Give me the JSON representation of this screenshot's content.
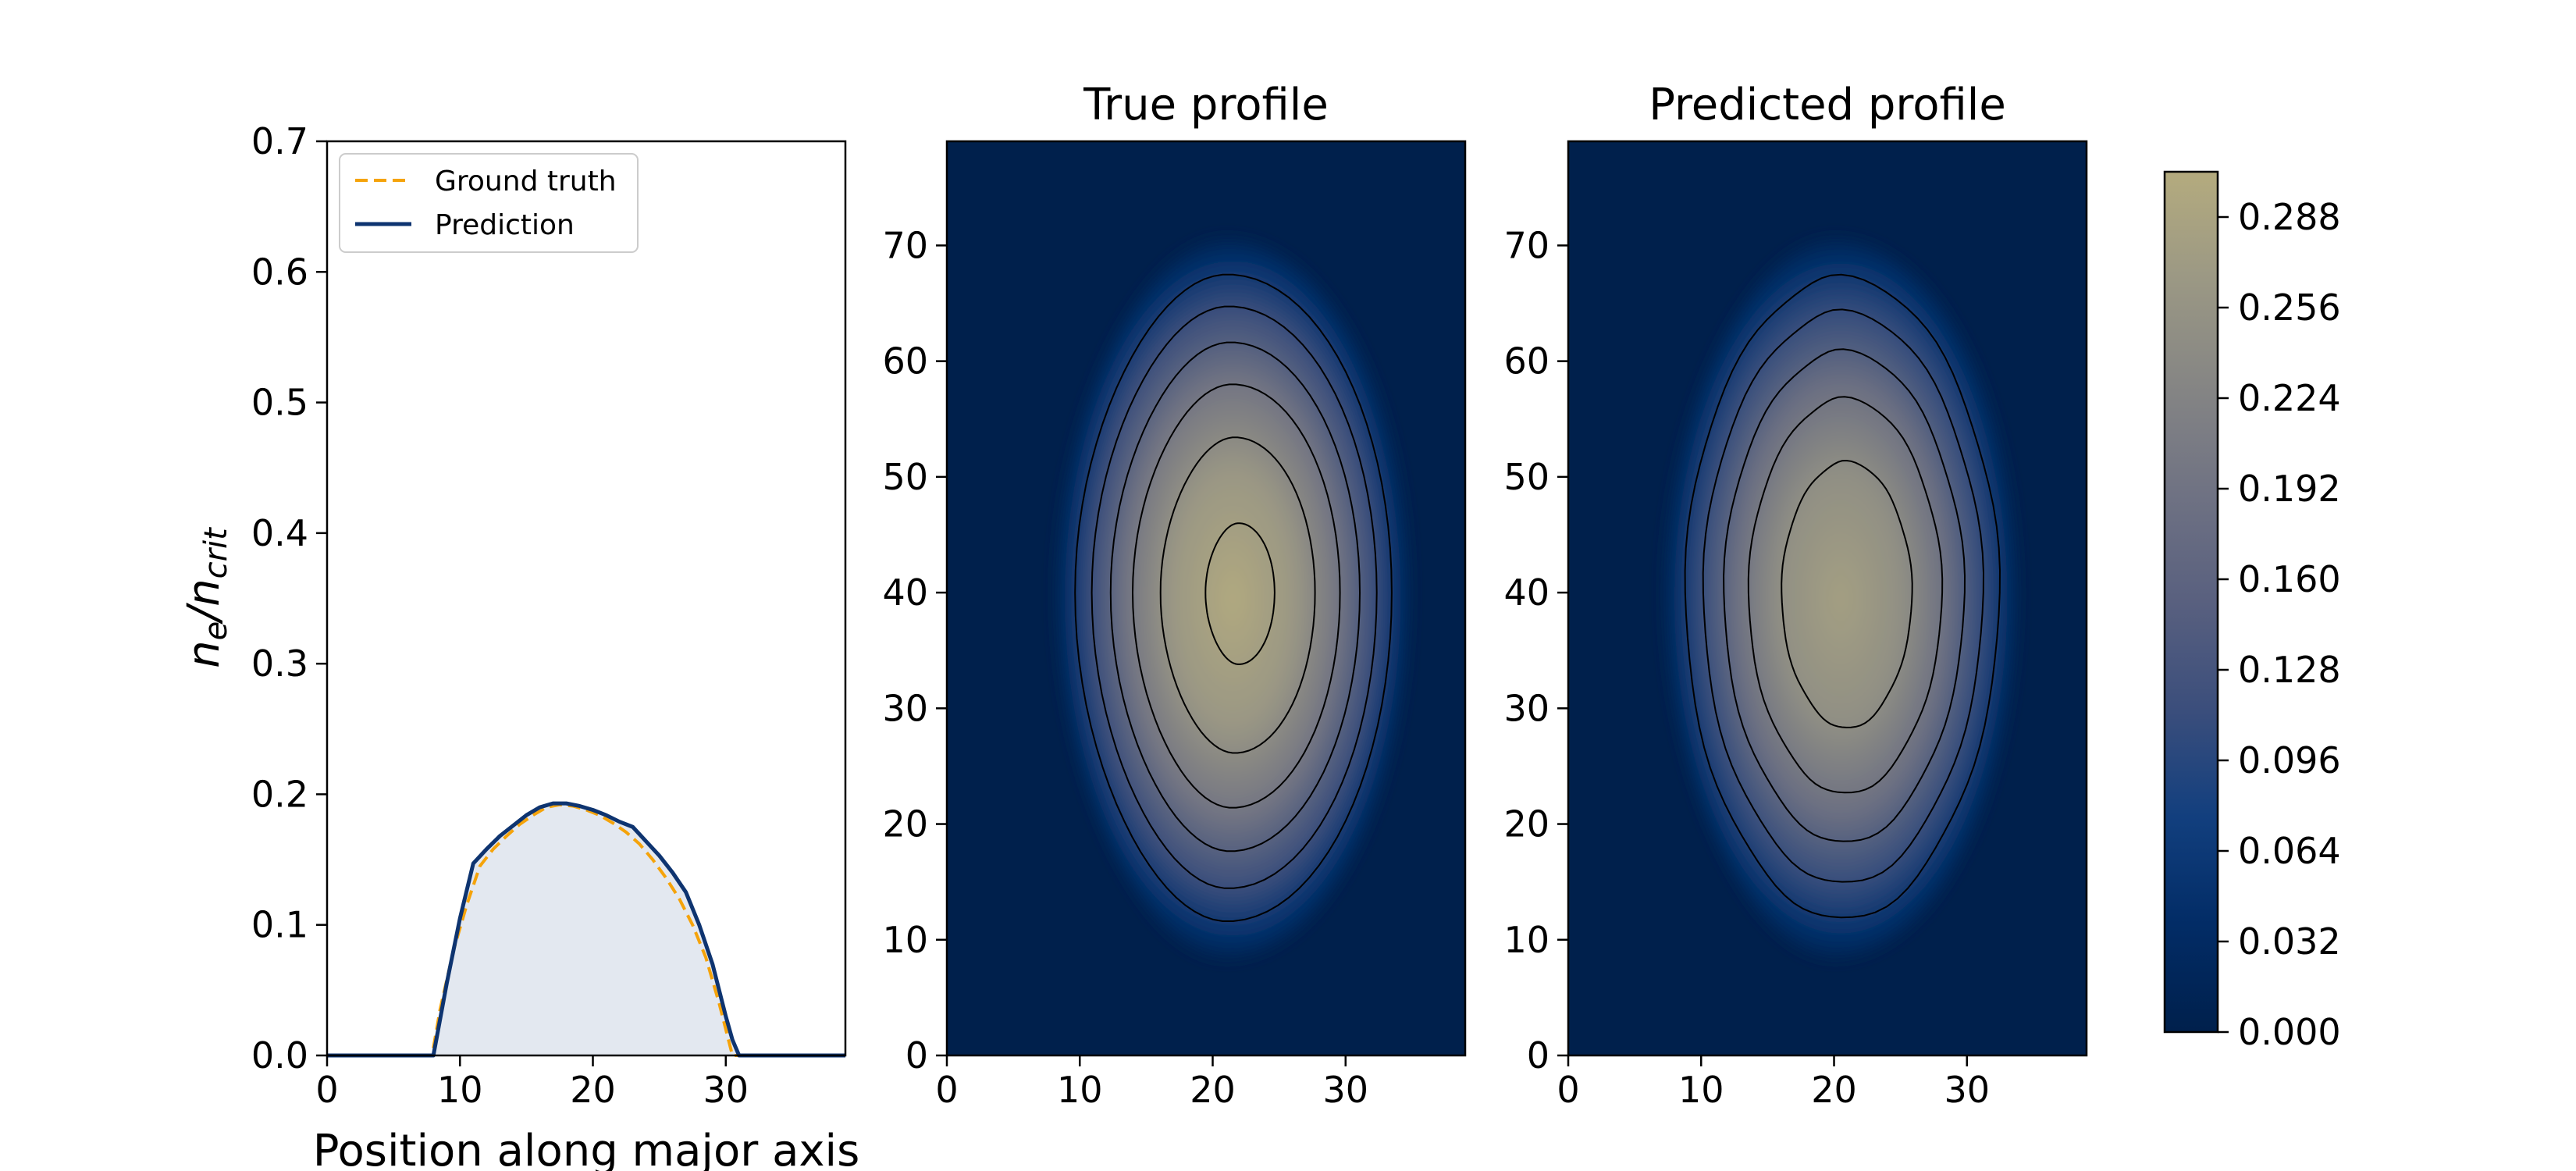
{
  "chart_data": [
    {
      "type": "line",
      "panel": "profile-line",
      "title": "",
      "xlabel": "Position along major axis",
      "ylabel_main": "n",
      "ylabel_sub1": "e",
      "ylabel_mid": "/n",
      "ylabel_sub2": "crit",
      "xlim": [
        0,
        39
      ],
      "ylim": [
        0,
        0.7
      ],
      "xticks": [
        0,
        10,
        20,
        30
      ],
      "yticks": [
        0.0,
        0.1,
        0.2,
        0.3,
        0.4,
        0.5,
        0.6,
        0.7
      ],
      "yticks_labels": [
        "0.0",
        "0.1",
        "0.2",
        "0.3",
        "0.4",
        "0.5",
        "0.6",
        "0.7"
      ],
      "legend_position": "top-left",
      "series": [
        {
          "name": "Ground truth",
          "style": "dashed",
          "color": "#f5a30a",
          "x": [
            0,
            7.9,
            8.5,
            9.5,
            10.5,
            11.5,
            12.5,
            13.5,
            14.5,
            15.5,
            16.5,
            17.5,
            18.5,
            19.5,
            20.5,
            21.5,
            22.5,
            23.5,
            24.5,
            25.5,
            26.5,
            27.5,
            28.5,
            29.5,
            30.0,
            30.5,
            31,
            39
          ],
          "y": [
            0,
            0,
            0.035,
            0.08,
            0.115,
            0.145,
            0.158,
            0.168,
            0.177,
            0.184,
            0.19,
            0.192,
            0.191,
            0.188,
            0.184,
            0.178,
            0.171,
            0.162,
            0.15,
            0.136,
            0.12,
            0.1,
            0.075,
            0.04,
            0.02,
            0.0,
            0,
            0
          ]
        },
        {
          "name": "Prediction",
          "style": "solid",
          "color": "#0e3470",
          "x": [
            0,
            8.0,
            9.0,
            10.0,
            11.0,
            12.0,
            13.0,
            14.0,
            15.0,
            16.0,
            17.0,
            18.0,
            19.0,
            20.0,
            21.0,
            22.0,
            23.0,
            24.0,
            25.0,
            26.0,
            27.0,
            28.0,
            29.0,
            30.0,
            30.5,
            31.0,
            39
          ],
          "y": [
            0,
            0,
            0.055,
            0.105,
            0.147,
            0.158,
            0.168,
            0.176,
            0.184,
            0.19,
            0.193,
            0.193,
            0.191,
            0.188,
            0.184,
            0.179,
            0.175,
            0.164,
            0.153,
            0.14,
            0.125,
            0.1,
            0.07,
            0.03,
            0.012,
            0.0,
            0
          ]
        }
      ]
    },
    {
      "type": "heatmap",
      "panel": "true-profile",
      "title": "True profile",
      "xlim": [
        0,
        39
      ],
      "ylim": [
        0,
        79
      ],
      "xticks": [
        0,
        10,
        20,
        30
      ],
      "yticks": [
        0,
        10,
        20,
        30,
        40,
        50,
        60,
        70
      ],
      "peak_value": 0.3,
      "peak_location": [
        21,
        40
      ],
      "contour_levels": [
        0.048,
        0.096,
        0.144,
        0.192,
        0.24,
        0.288
      ]
    },
    {
      "type": "heatmap",
      "panel": "predicted-profile",
      "title": "Predicted profile",
      "xlim": [
        0,
        39
      ],
      "ylim": [
        0,
        79
      ],
      "xticks": [
        0,
        10,
        20,
        30
      ],
      "yticks": [
        0,
        10,
        20,
        30,
        40,
        50,
        60,
        70
      ],
      "peak_value": 0.28,
      "peak_location": [
        20,
        40
      ],
      "contour_levels": [
        0.048,
        0.096,
        0.144,
        0.192,
        0.24
      ]
    }
  ],
  "colorbar": {
    "range": [
      0.0,
      0.304
    ],
    "ticks": [
      0.0,
      0.032,
      0.064,
      0.096,
      0.128,
      0.16,
      0.192,
      0.224,
      0.256,
      0.288
    ],
    "tick_labels": [
      "0.000",
      "0.032",
      "0.064",
      "0.096",
      "0.128",
      "0.160",
      "0.192",
      "0.224",
      "0.256",
      "0.288"
    ],
    "color_stops": [
      "#00204c",
      "#022c66",
      "#123f7e",
      "#3b4e7c",
      "#59607f",
      "#6f7283",
      "#858584",
      "#9b9884",
      "#b4ab7e"
    ]
  },
  "colors": {
    "fill_under_curve": "#e3e8f0",
    "background_cmap": "#00204c"
  }
}
